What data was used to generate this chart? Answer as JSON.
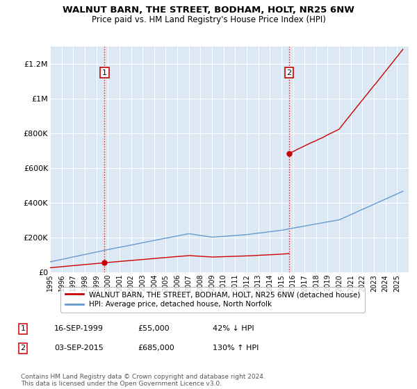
{
  "title": "WALNUT BARN, THE STREET, BODHAM, HOLT, NR25 6NW",
  "subtitle": "Price paid vs. HM Land Registry's House Price Index (HPI)",
  "ylabel_ticks": [
    "£0",
    "£200K",
    "£400K",
    "£600K",
    "£800K",
    "£1M",
    "£1.2M"
  ],
  "ylim": [
    0,
    1300000
  ],
  "yticks": [
    0,
    200000,
    400000,
    600000,
    800000,
    1000000,
    1200000
  ],
  "sale1_year": 1999.71,
  "sale1_price": 55000,
  "sale2_year": 2015.67,
  "sale2_price": 685000,
  "legend_line1": "WALNUT BARN, THE STREET, BODHAM, HOLT, NR25 6NW (detached house)",
  "legend_line2": "HPI: Average price, detached house, North Norfolk",
  "label1_date": "16-SEP-1999",
  "label1_price": "£55,000",
  "label1_hpi": "42% ↓ HPI",
  "label2_date": "03-SEP-2015",
  "label2_price": "£685,000",
  "label2_hpi": "130% ↑ HPI",
  "footnote": "Contains HM Land Registry data © Crown copyright and database right 2024.\nThis data is licensed under the Open Government Licence v3.0.",
  "plot_bg": "#dce9f5",
  "red_color": "#cc0000",
  "blue_color": "#6699cc",
  "xmin": 1995,
  "xmax": 2026
}
